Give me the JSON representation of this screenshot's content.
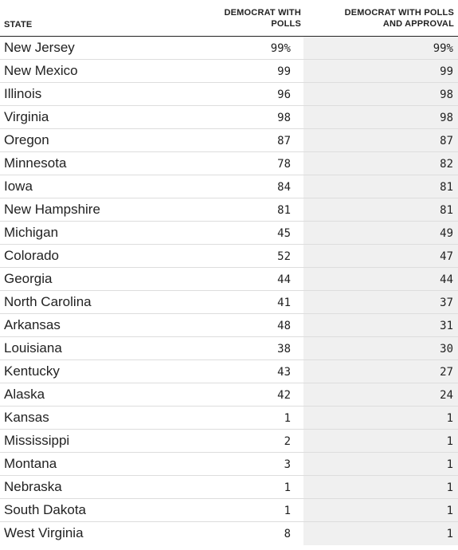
{
  "headers": {
    "state": "STATE",
    "col1_line1": "DEMOCRAT WITH",
    "col1_line2": "POLLS",
    "col2_line1": "DEMOCRAT WITH POLLS",
    "col2_line2": "AND APPROVAL"
  },
  "rows": [
    {
      "state": "New Jersey",
      "polls": "99%",
      "approval": "99%"
    },
    {
      "state": "New Mexico",
      "polls": "99",
      "approval": "99"
    },
    {
      "state": "Illinois",
      "polls": "96",
      "approval": "98"
    },
    {
      "state": "Virginia",
      "polls": "98",
      "approval": "98"
    },
    {
      "state": "Oregon",
      "polls": "87",
      "approval": "87"
    },
    {
      "state": "Minnesota",
      "polls": "78",
      "approval": "82"
    },
    {
      "state": "Iowa",
      "polls": "84",
      "approval": "81"
    },
    {
      "state": "New Hampshire",
      "polls": "81",
      "approval": "81"
    },
    {
      "state": "Michigan",
      "polls": "45",
      "approval": "49"
    },
    {
      "state": "Colorado",
      "polls": "52",
      "approval": "47"
    },
    {
      "state": "Georgia",
      "polls": "44",
      "approval": "44"
    },
    {
      "state": "North Carolina",
      "polls": "41",
      "approval": "37"
    },
    {
      "state": "Arkansas",
      "polls": "48",
      "approval": "31"
    },
    {
      "state": "Louisiana",
      "polls": "38",
      "approval": "30"
    },
    {
      "state": "Kentucky",
      "polls": "43",
      "approval": "27"
    },
    {
      "state": "Alaska",
      "polls": "42",
      "approval": "24"
    },
    {
      "state": "Kansas",
      "polls": "1",
      "approval": "1"
    },
    {
      "state": "Mississippi",
      "polls": "2",
      "approval": "1"
    },
    {
      "state": "Montana",
      "polls": "3",
      "approval": "1"
    },
    {
      "state": "Nebraska",
      "polls": "1",
      "approval": "1"
    },
    {
      "state": "South Dakota",
      "polls": "1",
      "approval": "1"
    },
    {
      "state": "West Virginia",
      "polls": "8",
      "approval": "1"
    }
  ]
}
